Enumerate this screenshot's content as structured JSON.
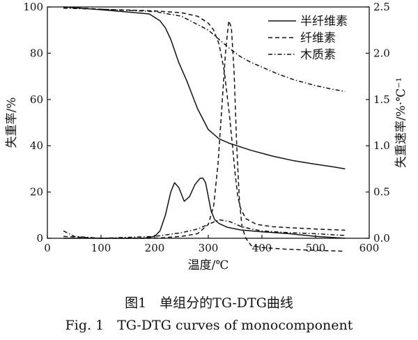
{
  "caption": {
    "cn": "图1　单组分的TG-DTG曲线",
    "en": "Fig. 1　TG-DTG curves of monocomponent"
  },
  "chart_data": {
    "type": "line",
    "xlabel": "温度/℃",
    "ylabel_left": "失重率/%",
    "ylabel_right": "失重速率/%·℃⁻¹",
    "xlim": [
      0,
      600
    ],
    "ylim_left": [
      0,
      100
    ],
    "ylim_right": [
      0,
      2.5
    ],
    "xticks": [
      "0",
      "100",
      "200",
      "300",
      "400",
      "500",
      "600"
    ],
    "yticks_left": [
      "0",
      "20",
      "40",
      "60",
      "80",
      "100"
    ],
    "yticks_right": [
      "0.0",
      "0.5",
      "1.0",
      "1.5",
      "2.0",
      "2.5"
    ],
    "grid": false,
    "legend_position": "top-right",
    "legend": [
      "半纤维素",
      "纤维素",
      "木质素"
    ],
    "series": [
      {
        "name": "半纤维素",
        "kind": "TG",
        "axis": "left",
        "dash": "solid",
        "x": [
          30,
          100,
          150,
          190,
          210,
          220,
          230,
          245,
          260,
          280,
          300,
          310,
          320,
          340,
          380,
          420,
          460,
          500,
          530,
          555
        ],
        "y": [
          100,
          98.8,
          97.8,
          97,
          94,
          91,
          86,
          76,
          68,
          56,
          47,
          45,
          43,
          41,
          38,
          35.5,
          33.5,
          32,
          31,
          30
        ]
      },
      {
        "name": "纤维素",
        "kind": "TG",
        "axis": "left",
        "dash": "dashed",
        "x": [
          30,
          100,
          200,
          250,
          280,
          300,
          310,
          320,
          330,
          340,
          350,
          355,
          360,
          370,
          390,
          420,
          460,
          500,
          555
        ],
        "y": [
          100,
          99,
          98.3,
          97.5,
          96,
          93,
          90,
          84,
          72,
          52,
          28,
          18,
          13,
          8.5,
          6,
          5,
          4.5,
          4,
          3.5
        ]
      },
      {
        "name": "木质素",
        "kind": "TG",
        "axis": "left",
        "dash": "dashdot",
        "x": [
          30,
          100,
          200,
          250,
          300,
          320,
          340,
          360,
          380,
          400,
          430,
          460,
          500,
          530,
          555
        ],
        "y": [
          99.5,
          99,
          98,
          96,
          90,
          86,
          82,
          78.5,
          76,
          74,
          71,
          68.5,
          66,
          64.5,
          63.5
        ]
      },
      {
        "name": "半纤维素",
        "kind": "DTG",
        "axis": "right",
        "dash": "solid",
        "x": [
          30,
          100,
          180,
          200,
          210,
          220,
          230,
          237,
          245,
          255,
          265,
          275,
          285,
          290,
          295,
          300,
          305,
          312,
          320,
          335,
          360,
          400,
          450,
          500,
          555
        ],
        "y": [
          0.0,
          0.0,
          0.0,
          0.02,
          0.08,
          0.25,
          0.5,
          0.6,
          0.55,
          0.4,
          0.45,
          0.58,
          0.65,
          0.65,
          0.6,
          0.45,
          0.3,
          0.2,
          0.16,
          0.12,
          0.09,
          0.07,
          0.05,
          0.02,
          0.0
        ]
      },
      {
        "name": "纤维素",
        "kind": "DTG",
        "axis": "right",
        "dash": "dashed",
        "x": [
          30,
          100,
          200,
          250,
          280,
          300,
          310,
          318,
          325,
          332,
          338,
          343,
          348,
          353,
          358,
          363,
          370,
          380,
          400,
          450,
          500,
          555
        ],
        "y": [
          0.02,
          0.0,
          0.0,
          0.02,
          0.05,
          0.15,
          0.35,
          0.8,
          1.4,
          2.0,
          2.35,
          2.28,
          1.8,
          1.0,
          0.4,
          0.12,
          0.0,
          -0.08,
          -0.1,
          -0.12,
          -0.13,
          -0.14
        ]
      },
      {
        "name": "木质素",
        "kind": "DTG",
        "axis": "right",
        "dash": "dashdot",
        "x": [
          30,
          50,
          100,
          200,
          250,
          280,
          300,
          320,
          340,
          360,
          380,
          400,
          450,
          500,
          555
        ],
        "y": [
          0.08,
          0.02,
          0.0,
          0.02,
          0.06,
          0.1,
          0.15,
          0.2,
          0.18,
          0.13,
          0.1,
          0.08,
          0.06,
          0.05,
          0.03
        ]
      }
    ]
  }
}
